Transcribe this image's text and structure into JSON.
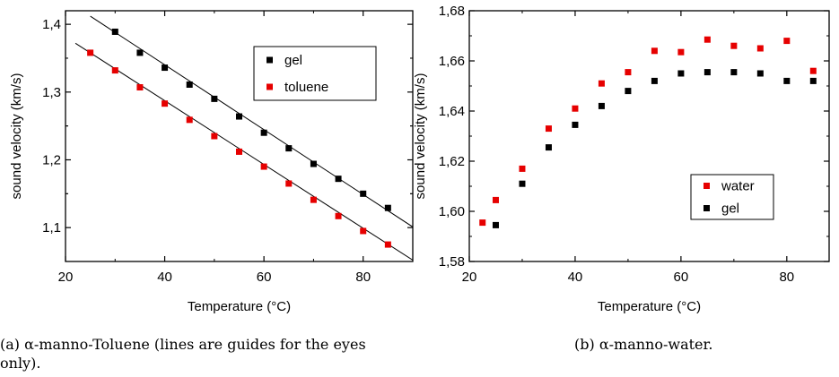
{
  "chart_data": [
    {
      "type": "scatter",
      "xlabel": "Temperature (°C)",
      "ylabel": "sound velocity (km/s)",
      "xlim": [
        20,
        90
      ],
      "ylim": [
        1.05,
        1.42
      ],
      "xticks": [
        "20",
        "40",
        "60",
        "80"
      ],
      "yticks": [
        "1,1",
        "1,2",
        "1,3",
        "1,4"
      ],
      "ytick_values": [
        1.1,
        1.2,
        1.3,
        1.4
      ],
      "xtick_values": [
        20,
        40,
        60,
        80
      ],
      "legend_position": "top-right",
      "series": [
        {
          "name": "gel",
          "color": "#000000",
          "x": [
            30,
            35,
            40,
            45,
            50,
            55,
            60,
            65,
            70,
            75,
            80,
            85
          ],
          "y": [
            1.389,
            1.358,
            1.336,
            1.311,
            1.29,
            1.264,
            1.24,
            1.217,
            1.194,
            1.172,
            1.15,
            1.129
          ],
          "fit_line": {
            "x": [
              25,
              90
            ],
            "y": [
              1.412,
              1.101
            ]
          }
        },
        {
          "name": "toluene",
          "color": "#e60000",
          "x": [
            25,
            30,
            35,
            40,
            45,
            50,
            55,
            60,
            65,
            70,
            75,
            80,
            85
          ],
          "y": [
            1.358,
            1.332,
            1.307,
            1.283,
            1.259,
            1.235,
            1.212,
            1.19,
            1.165,
            1.141,
            1.117,
            1.095,
            1.075
          ],
          "fit_line": {
            "x": [
              22,
              90
            ],
            "y": [
              1.372,
              1.052
            ]
          }
        }
      ],
      "caption": "(a) α-manno-Toluene (lines are guides for the eyes only)."
    },
    {
      "type": "scatter",
      "xlabel": "Temperature (°C)",
      "ylabel": "sound velocity (km/s)",
      "xlim": [
        20,
        88
      ],
      "ylim": [
        1.58,
        1.68
      ],
      "xticks": [
        "20",
        "40",
        "60",
        "80"
      ],
      "yticks": [
        "1,58",
        "1,60",
        "1,62",
        "1,64",
        "1,66",
        "1,68"
      ],
      "ytick_values": [
        1.58,
        1.6,
        1.62,
        1.64,
        1.66,
        1.68
      ],
      "xtick_values": [
        20,
        40,
        60,
        80
      ],
      "legend_position": "center-right",
      "series": [
        {
          "name": "water",
          "color": "#e60000",
          "x": [
            22.5,
            25,
            30,
            35,
            40,
            45,
            50,
            55,
            60,
            65,
            70,
            75,
            80,
            85
          ],
          "y": [
            1.5955,
            1.6045,
            1.617,
            1.633,
            1.641,
            1.651,
            1.6555,
            1.664,
            1.6635,
            1.6685,
            1.666,
            1.665,
            1.668,
            1.656
          ]
        },
        {
          "name": "gel",
          "color": "#000000",
          "x": [
            25,
            30,
            35,
            40,
            45,
            50,
            55,
            60,
            65,
            70,
            75,
            80,
            85
          ],
          "y": [
            1.5945,
            1.611,
            1.6255,
            1.6345,
            1.642,
            1.648,
            1.652,
            1.655,
            1.6555,
            1.6555,
            1.655,
            1.652,
            1.652
          ]
        }
      ],
      "caption": "(b) α-manno-water."
    }
  ]
}
